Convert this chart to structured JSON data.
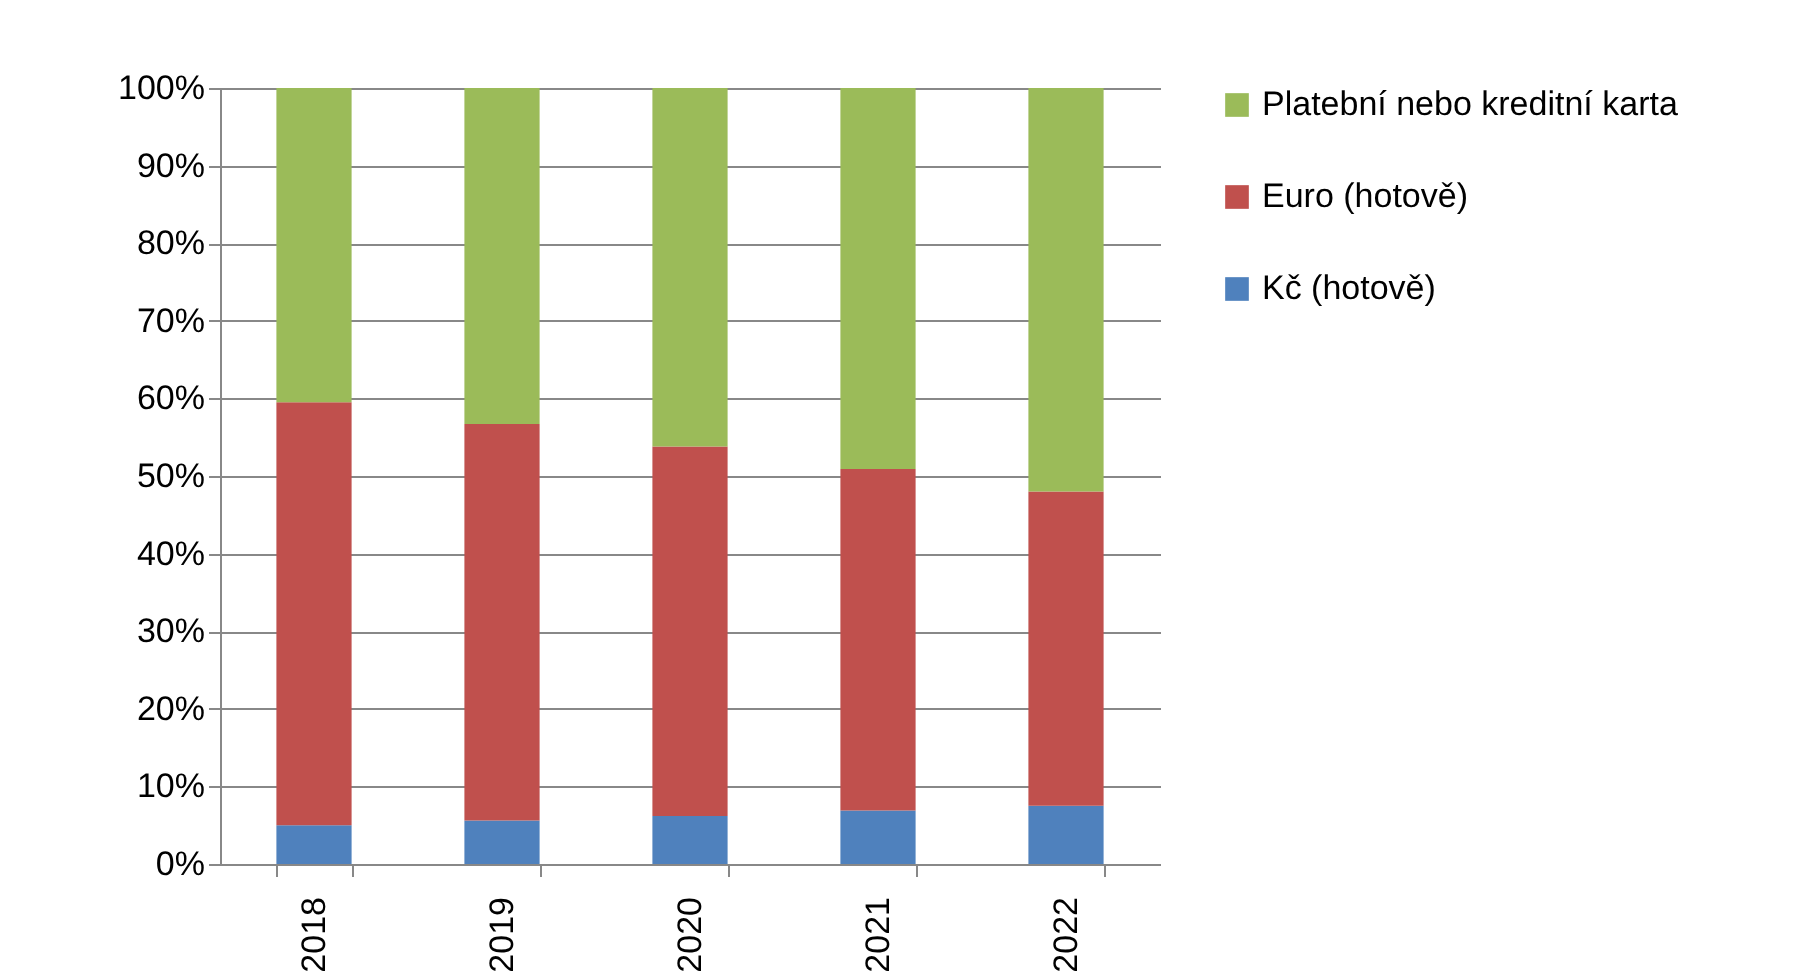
{
  "chart_data": {
    "type": "bar",
    "stacked": true,
    "categories": [
      "2018",
      "2019",
      "2020",
      "2021",
      "2022"
    ],
    "series": [
      {
        "name": "Kč (hotově)",
        "color": "#4f81bd",
        "values": [
          5.0,
          5.6,
          6.2,
          6.9,
          7.5
        ]
      },
      {
        "name": "Euro (hotově)",
        "color": "#c0504d",
        "values": [
          54.5,
          51.1,
          47.6,
          44.0,
          40.5
        ]
      },
      {
        "name": "Platební nebo kreditní karta",
        "color": "#9bbb59",
        "values": [
          40.5,
          43.3,
          46.2,
          49.1,
          52.0
        ]
      }
    ],
    "ylim": [
      0,
      100
    ],
    "yticks": [
      {
        "value": 0,
        "label": "0%"
      },
      {
        "value": 10,
        "label": "10%"
      },
      {
        "value": 20,
        "label": "20%"
      },
      {
        "value": 30,
        "label": "30%"
      },
      {
        "value": 40,
        "label": "40%"
      },
      {
        "value": 50,
        "label": "50%"
      },
      {
        "value": 60,
        "label": "60%"
      },
      {
        "value": 70,
        "label": "70%"
      },
      {
        "value": 80,
        "label": "80%"
      },
      {
        "value": 90,
        "label": "90%"
      },
      {
        "value": 100,
        "label": "100%"
      }
    ],
    "grid": "y",
    "legend": "right"
  }
}
